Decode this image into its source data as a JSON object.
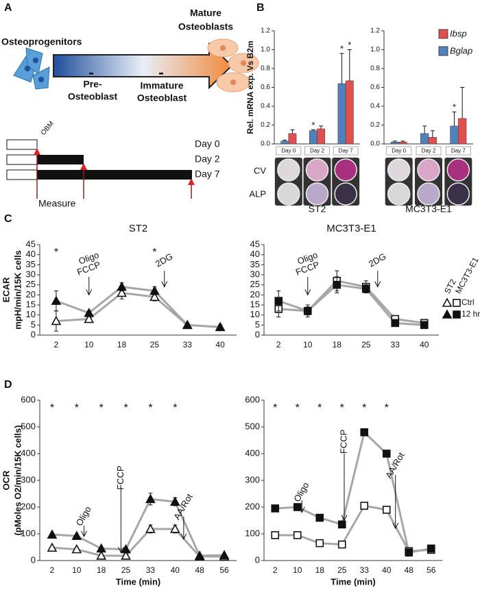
{
  "panel_labels": [
    "A",
    "B",
    "C",
    "D"
  ],
  "diagram": {
    "start": "Osteoprogenitors",
    "end": [
      "Mature",
      "Osteoblasts"
    ],
    "stage1": [
      "Pre-",
      "Osteoblast"
    ],
    "stage2": [
      "Immature",
      "Osteoblast"
    ],
    "medium": "OBM",
    "days": [
      "Day 0",
      "Day 2",
      "Day 7"
    ],
    "measure": "Measure"
  },
  "image_rows": [
    "CV",
    "ALP"
  ],
  "chart_data": [
    {
      "type": "bar",
      "title": "ST2",
      "ylabel": "Rel. mRNA exp. Vs B2m",
      "categories": [
        "Day 0",
        "Day 2",
        "Day 7"
      ],
      "series": [
        {
          "name": "Bglap",
          "color": "#4f81bd",
          "values": [
            0.03,
            0.14,
            0.64
          ],
          "errors": [
            0.01,
            0.01,
            0.32
          ],
          "significance": [
            null,
            "*",
            "*"
          ]
        },
        {
          "name": "Ibsp",
          "color": "#e0504e",
          "values": [
            0.11,
            0.16,
            0.67
          ],
          "errors": [
            0.04,
            0.03,
            0.33
          ],
          "significance": [
            null,
            null,
            "*"
          ]
        }
      ],
      "ylim": [
        0,
        1.2
      ],
      "yticks": [
        {
          "value": 0,
          "label": "0.0"
        },
        0.2,
        0.4,
        0.6,
        0.8,
        {
          "value": 1,
          "label": "1.0"
        },
        1.2
      ]
    },
    {
      "type": "bar",
      "title": "MC3T3-E1",
      "categories": [
        "Day 0",
        "Day 2",
        "Day 7"
      ],
      "legend": "top-right",
      "series": [
        {
          "name": "Bglap",
          "color": "#4f81bd",
          "values": [
            0.02,
            0.11,
            0.19
          ],
          "errors": [
            0.01,
            0.08,
            0.15
          ],
          "significance": [
            null,
            null,
            "*"
          ]
        },
        {
          "name": "Ibsp",
          "color": "#e0504e",
          "values": [
            0.02,
            0.07,
            0.27
          ],
          "errors": [
            0.01,
            0.07,
            0.33
          ]
        }
      ],
      "ylim": [
        0,
        1.2
      ],
      "yticks": [
        {
          "value": 0,
          "label": "0.0"
        },
        0.2,
        0.4,
        0.6,
        0.8,
        {
          "value": 1,
          "label": "1.0"
        },
        1.2
      ]
    },
    {
      "type": "line",
      "title": "ST2",
      "ylabel": [
        "ECAR",
        "mpH/min/15K cells"
      ],
      "categories": [
        "2",
        "10",
        "18",
        "25",
        "33",
        "40"
      ],
      "line_color": "#a6a6a6",
      "series": [
        {
          "name": "Ctrl",
          "marker": "triangle",
          "filled": false,
          "values": [
            7,
            8,
            21,
            19,
            5,
            4
          ],
          "errors": [
            5,
            1,
            3,
            2,
            1,
            1
          ]
        },
        {
          "name": "12 hr",
          "marker": "triangle",
          "filled": true,
          "values": [
            17,
            11,
            24,
            22,
            5,
            4
          ],
          "errors": [
            5,
            1,
            2,
            2,
            1,
            1
          ]
        }
      ],
      "significance": [
        "*",
        null,
        null,
        "*",
        null,
        null
      ],
      "annotations": [
        {
          "text": [
            "Oligo",
            "FCCP"
          ]
        },
        {
          "text": [
            "2DG"
          ]
        }
      ],
      "ylim": [
        0,
        45
      ],
      "yticks": [
        0,
        5,
        10,
        15,
        20,
        25,
        30,
        35,
        40,
        45
      ]
    },
    {
      "type": "line",
      "title": "MC3T3-E1",
      "categories": [
        "2",
        "10",
        "18",
        "25",
        "33",
        "40"
      ],
      "line_color": "#a6a6a6",
      "legend": "right",
      "legend_header": [
        "ST2",
        "MC3T3-E1"
      ],
      "series": [
        {
          "name": "Ctrl",
          "marker": "square",
          "filled": false,
          "values": [
            13,
            12,
            27,
            24,
            8,
            6
          ],
          "errors": [
            4,
            2,
            5,
            3,
            1,
            1
          ]
        },
        {
          "name": "12 hr",
          "marker": "square",
          "filled": true,
          "values": [
            17,
            12,
            25,
            23,
            6,
            5
          ],
          "errors": [
            5,
            3,
            4,
            2,
            1,
            1
          ]
        }
      ],
      "annotations": [
        {
          "text": [
            "Oligo",
            "FCCP"
          ]
        },
        {
          "text": [
            "2DG"
          ]
        }
      ],
      "ylim": [
        0,
        45
      ],
      "yticks": [
        0,
        5,
        10,
        15,
        20,
        25,
        30,
        35,
        40,
        45
      ]
    },
    {
      "type": "line",
      "ylabel": [
        "OCR",
        "(pMoles O2/min/15K cells)"
      ],
      "xlabel": "Time (min)",
      "categories": [
        "2",
        "10",
        "18",
        "25",
        "33",
        "40",
        "48",
        "56"
      ],
      "line_color": "#a6a6a6",
      "series": [
        {
          "name": "Ctrl",
          "marker": "triangle",
          "filled": false,
          "values": [
            48,
            42,
            18,
            18,
            118,
            118,
            15,
            15
          ],
          "errors": [
            4,
            5,
            4,
            3,
            15,
            15,
            4,
            4
          ]
        },
        {
          "name": "12 hr",
          "marker": "triangle",
          "filled": true,
          "values": [
            97,
            92,
            45,
            42,
            230,
            220,
            18,
            20
          ],
          "errors": [
            5,
            6,
            4,
            4,
            22,
            15,
            4,
            4
          ]
        }
      ],
      "significance": [
        "*",
        "*",
        "*",
        "*",
        "*",
        "*",
        null,
        null
      ],
      "annotations": [
        {
          "text": [
            "Oligo"
          ]
        },
        {
          "text": [
            "FCCP"
          ]
        },
        {
          "text": [
            "AA/Rot"
          ]
        }
      ],
      "ylim": [
        0,
        600
      ],
      "yticks": [
        0,
        100,
        200,
        300,
        400,
        500,
        600
      ]
    },
    {
      "type": "line",
      "xlabel": "Time (min)",
      "categories": [
        "2",
        "10",
        "18",
        "25",
        "33",
        "40",
        "48",
        "56"
      ],
      "line_color": "#a6a6a6",
      "series": [
        {
          "name": "Ctrl",
          "marker": "square",
          "filled": false,
          "values": [
            95,
            95,
            65,
            60,
            205,
            190,
            35,
            40
          ],
          "errors": [
            5,
            5,
            5,
            5,
            12,
            10,
            5,
            5
          ]
        },
        {
          "name": "12 hr",
          "marker": "square",
          "filled": true,
          "values": [
            195,
            200,
            160,
            135,
            480,
            400,
            30,
            45
          ],
          "errors": [
            6,
            6,
            6,
            8,
            8,
            8,
            5,
            5
          ]
        }
      ],
      "significance": [
        "*",
        "*",
        "*",
        "*",
        "*",
        "*",
        null,
        null
      ],
      "annotations": [
        {
          "text": [
            "Oligo"
          ]
        },
        {
          "text": [
            "FCCP"
          ]
        },
        {
          "text": [
            "AA/Rot"
          ]
        }
      ],
      "ylim": [
        0,
        600
      ],
      "yticks": [
        0,
        100,
        200,
        300,
        400,
        500,
        600
      ]
    }
  ]
}
